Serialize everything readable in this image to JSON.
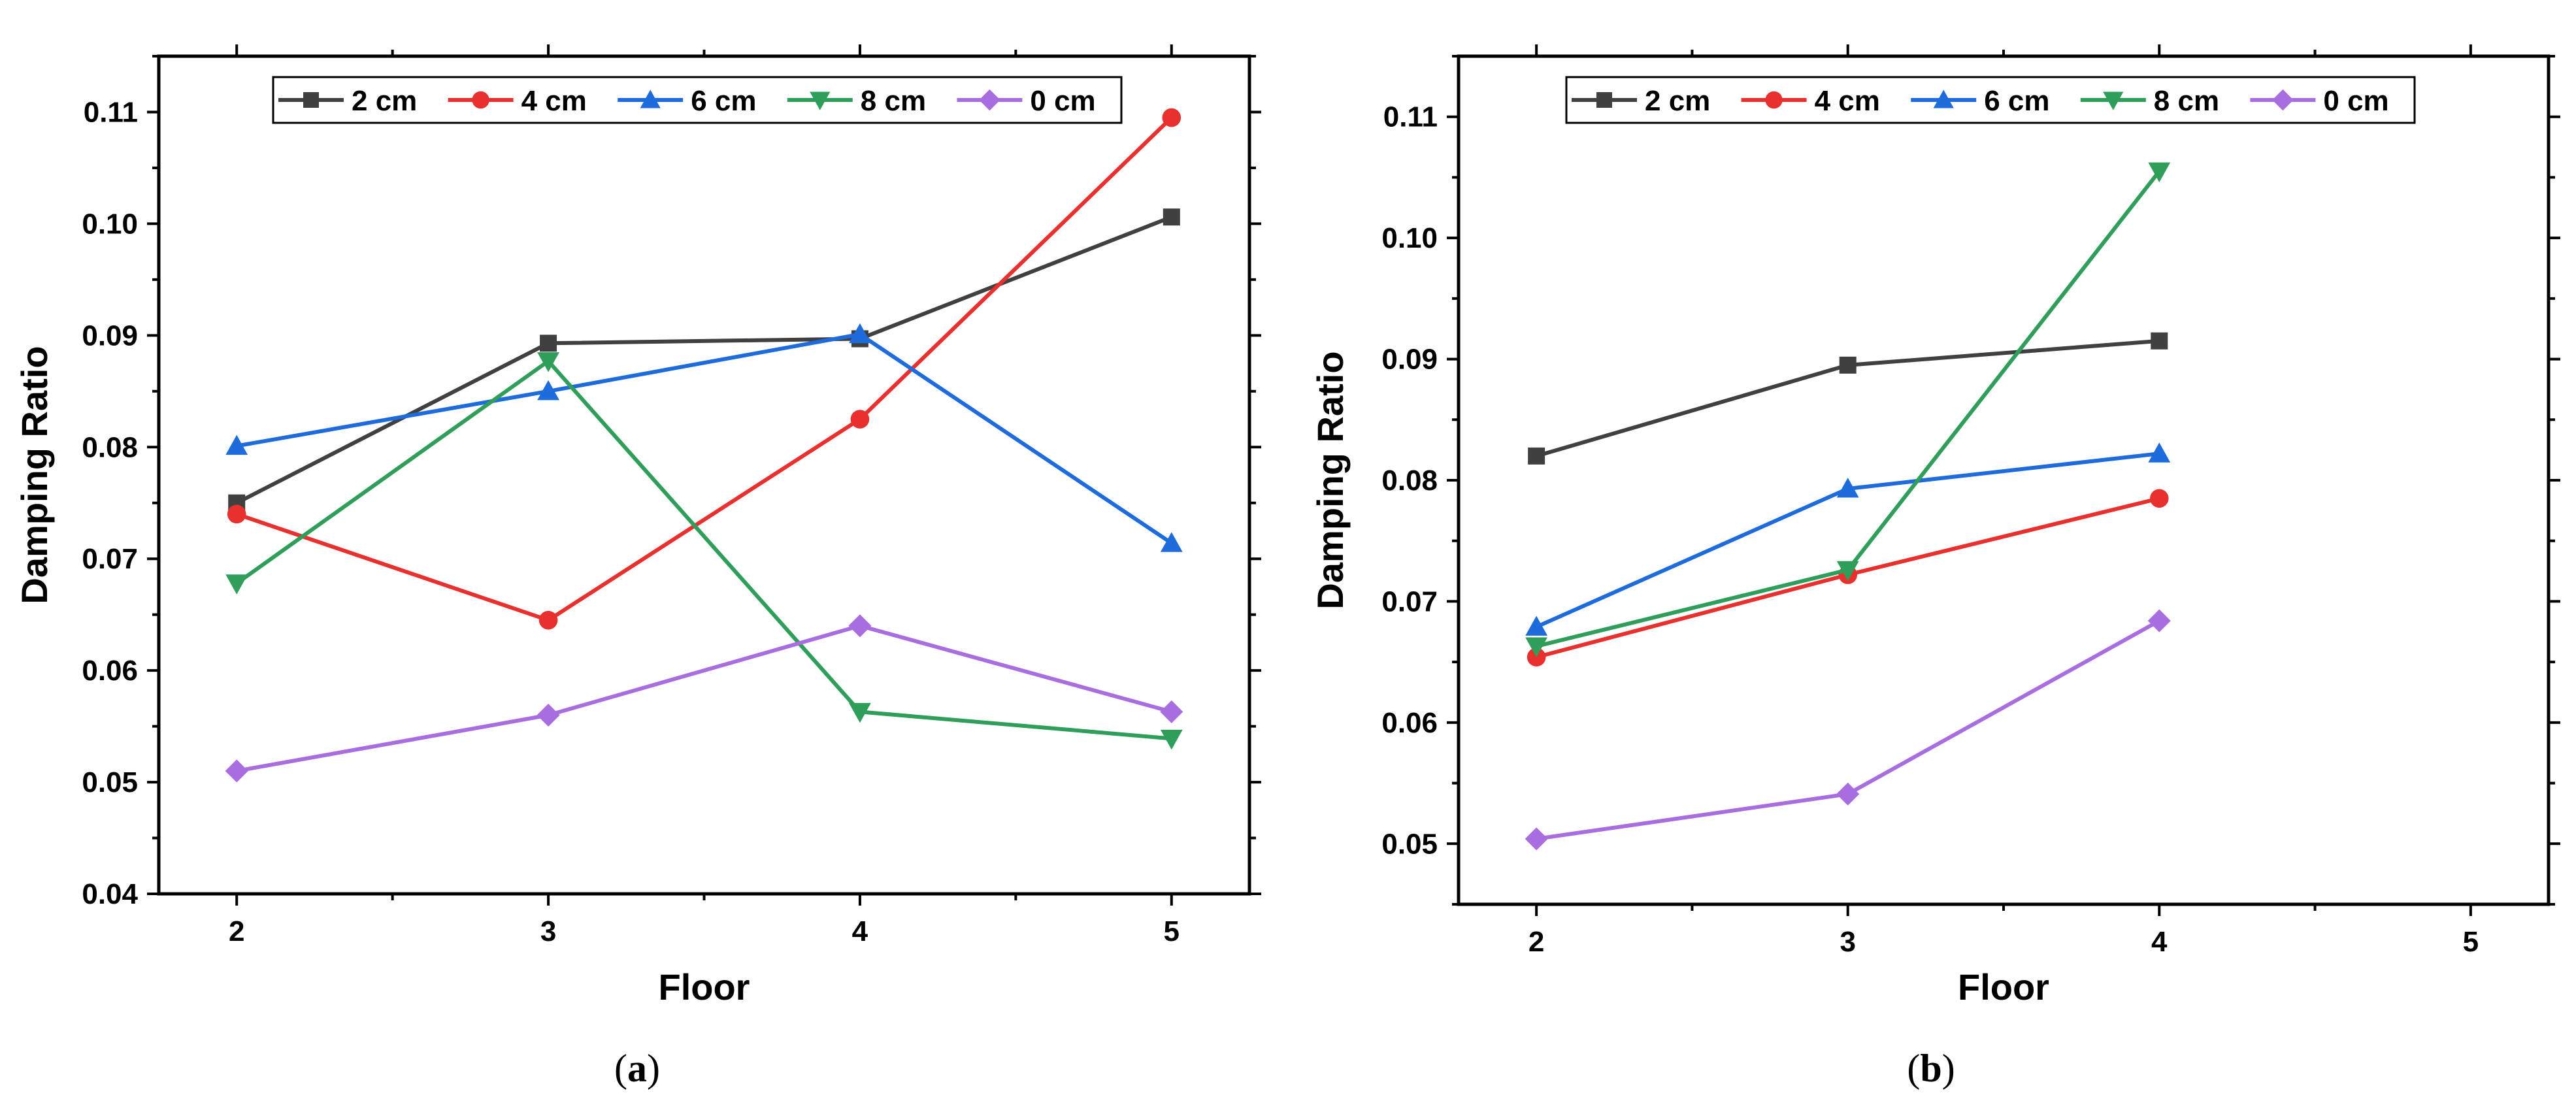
{
  "chart_data": [
    {
      "type": "line",
      "caption": "a",
      "xlabel": "Floor",
      "ylabel": "Damping Ratio",
      "xlim": [
        1.75,
        5.25
      ],
      "ylim": [
        0.04,
        0.115
      ],
      "xticks": [
        "2",
        "3",
        "4",
        "5"
      ],
      "yticks": [
        "0.04",
        "0.05",
        "0.06",
        "0.07",
        "0.08",
        "0.09",
        "0.10",
        "0.11"
      ],
      "legend_position": "top",
      "series": [
        {
          "name": "2 cm",
          "color": "#404040",
          "marker": "square",
          "x": [
            2,
            3,
            4,
            5
          ],
          "values": [
            0.075,
            0.0893,
            0.0897,
            0.1006
          ]
        },
        {
          "name": "4 cm",
          "color": "#e8302e",
          "marker": "circle",
          "x": [
            2,
            3,
            4,
            5
          ],
          "values": [
            0.074,
            0.0645,
            0.0825,
            0.1095
          ]
        },
        {
          "name": "6 cm",
          "color": "#1e6bdc",
          "marker": "triangle-up",
          "x": [
            2,
            3,
            4,
            5
          ],
          "values": [
            0.0801,
            0.085,
            0.0901,
            0.0714
          ]
        },
        {
          "name": "8 cm",
          "color": "#2e9e5a",
          "marker": "triangle-down",
          "x": [
            2,
            3,
            4,
            5
          ],
          "values": [
            0.0678,
            0.0877,
            0.0563,
            0.0539
          ]
        },
        {
          "name": "0 cm",
          "color": "#a86ee0",
          "marker": "diamond",
          "x": [
            2,
            3,
            4,
            5
          ],
          "values": [
            0.051,
            0.056,
            0.064,
            0.0563
          ]
        }
      ]
    },
    {
      "type": "line",
      "caption": "b",
      "xlabel": "Floor",
      "ylabel": "Damping Ratio",
      "xlim": [
        1.75,
        5.25
      ],
      "ylim": [
        0.045,
        0.115
      ],
      "xticks": [
        "2",
        "3",
        "4",
        "5"
      ],
      "yticks": [
        "0.05",
        "0.06",
        "0.07",
        "0.08",
        "0.09",
        "0.10",
        "0.11"
      ],
      "legend_position": "top",
      "series": [
        {
          "name": "2 cm",
          "color": "#404040",
          "marker": "square",
          "x": [
            2,
            3,
            4
          ],
          "values": [
            0.082,
            0.0895,
            0.0915
          ]
        },
        {
          "name": "4 cm",
          "color": "#e8302e",
          "marker": "circle",
          "x": [
            2,
            3,
            4
          ],
          "values": [
            0.0654,
            0.0722,
            0.0785
          ]
        },
        {
          "name": "6 cm",
          "color": "#1e6bdc",
          "marker": "triangle-up",
          "x": [
            2,
            3,
            4
          ],
          "values": [
            0.0679,
            0.0793,
            0.0822
          ]
        },
        {
          "name": "8 cm",
          "color": "#2e9e5a",
          "marker": "triangle-down",
          "x": [
            2,
            3,
            4
          ],
          "values": [
            0.0663,
            0.0726,
            0.1055
          ]
        },
        {
          "name": "0 cm",
          "color": "#a86ee0",
          "marker": "diamond",
          "x": [
            2,
            3,
            4
          ],
          "values": [
            0.0504,
            0.0541,
            0.0684
          ]
        }
      ]
    }
  ]
}
